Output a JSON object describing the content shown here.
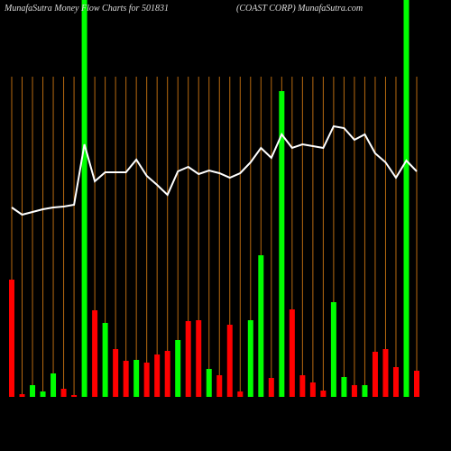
{
  "chart_data": {
    "type": "money-flow",
    "title": "MunafaSutra  Money Flow  Charts for 501831",
    "subtitle": "(COAST CORP) MunafaSutra.com",
    "ylim": [
      0,
      440
    ],
    "grid": true,
    "grid_color": "#b86a10",
    "background": "#000000",
    "categories": [
      null,
      null,
      null,
      null,
      null,
      null,
      null,
      null,
      null,
      null,
      null,
      null,
      null,
      null,
      null,
      null,
      null,
      null,
      null,
      null,
      null,
      null,
      null,
      null,
      null,
      null,
      null,
      null,
      null,
      null,
      null,
      null,
      null,
      null,
      null,
      null,
      null,
      null,
      null,
      null
    ],
    "bars": {
      "values": [
        130,
        3,
        13,
        6,
        26,
        9,
        2,
        440,
        96,
        82,
        53,
        40,
        41,
        38,
        47,
        51,
        63,
        84,
        85,
        31,
        24,
        80,
        6,
        85,
        157,
        21,
        339,
        97,
        24,
        16,
        7,
        105,
        22,
        13,
        13,
        50,
        53,
        33,
        440,
        29
      ],
      "colors": [
        "#ff0000",
        "#ff0000",
        "#00ff00",
        "#00ff00",
        "#00ff00",
        "#ff0000",
        "#ff0000",
        "#00ff00",
        "#ff0000",
        "#00ff00",
        "#ff0000",
        "#ff0000",
        "#00ff00",
        "#ff0000",
        "#ff0000",
        "#ff0000",
        "#00ff00",
        "#ff0000",
        "#ff0000",
        "#00ff00",
        "#ff0000",
        "#ff0000",
        "#ff0000",
        "#00ff00",
        "#00ff00",
        "#ff0000",
        "#00ff00",
        "#ff0000",
        "#ff0000",
        "#ff0000",
        "#ff0000",
        "#00ff00",
        "#00ff00",
        "#ff0000",
        "#00ff00",
        "#ff0000",
        "#ff0000",
        "#ff0000",
        "#00ff00",
        "#ff0000"
      ]
    },
    "line": {
      "color": "#ffffff",
      "values": [
        210,
        202,
        205,
        208,
        210,
        211,
        213,
        280,
        239,
        249,
        249,
        249,
        263,
        245,
        235,
        224,
        250,
        255,
        247,
        251,
        248,
        243,
        248,
        260,
        276,
        265,
        291,
        276,
        280,
        278,
        276,
        300,
        298,
        285,
        291,
        270,
        260,
        243,
        262,
        250
      ]
    }
  }
}
